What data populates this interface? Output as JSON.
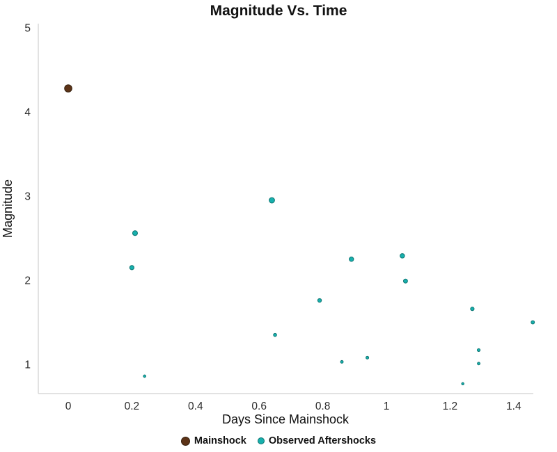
{
  "chart_data": {
    "type": "scatter",
    "title": "Magnitude Vs. Time",
    "xlabel": "Days Since Mainshock",
    "ylabel": "Magnitude",
    "xlim": [
      -0.09,
      1.47
    ],
    "ylim": [
      0.66,
      5.05
    ],
    "x_ticks": [
      0,
      0.2,
      0.4,
      0.6,
      0.8,
      1,
      1.2,
      1.4
    ],
    "x_tick_labels": [
      "0",
      "0.2",
      "0.4",
      "0.6",
      "0.8",
      "1",
      "1.2",
      "1.4"
    ],
    "y_ticks": [
      1,
      2,
      3,
      4,
      5
    ],
    "y_tick_labels": [
      "1",
      "2",
      "3",
      "4",
      "5"
    ],
    "grid": false,
    "legend_position": "bottom",
    "marker_size_encodes": "magnitude",
    "series": [
      {
        "name": "Mainshock",
        "color": "#5c3317",
        "stroke": "#35200e",
        "points": [
          {
            "x": 0,
            "y": 4.28
          }
        ]
      },
      {
        "name": "Observed Aftershocks",
        "color": "#17b0ad",
        "stroke": "#0e7572",
        "points": [
          {
            "x": 0.2,
            "y": 2.15
          },
          {
            "x": 0.21,
            "y": 2.56
          },
          {
            "x": 0.24,
            "y": 0.86
          },
          {
            "x": 0.64,
            "y": 2.95
          },
          {
            "x": 0.65,
            "y": 1.35
          },
          {
            "x": 0.79,
            "y": 1.76
          },
          {
            "x": 0.86,
            "y": 1.03
          },
          {
            "x": 0.89,
            "y": 2.25
          },
          {
            "x": 0.94,
            "y": 1.08
          },
          {
            "x": 1.05,
            "y": 2.29
          },
          {
            "x": 1.06,
            "y": 1.99
          },
          {
            "x": 1.24,
            "y": 0.77
          },
          {
            "x": 1.27,
            "y": 1.66
          },
          {
            "x": 1.29,
            "y": 1.17
          },
          {
            "x": 1.29,
            "y": 1.01
          },
          {
            "x": 1.46,
            "y": 1.5
          }
        ]
      }
    ],
    "axis_line_color": "#d9d9d9",
    "background_color": "#ffffff"
  }
}
